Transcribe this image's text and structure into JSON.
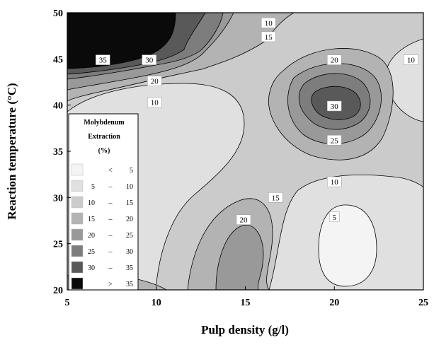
{
  "chart_data": {
    "type": "heatmap",
    "subtype": "filled-contour",
    "xlabel": "Pulp density (g/l)",
    "ylabel": "Reaction temperature (°C)",
    "xlim": [
      5,
      25
    ],
    "ylim": [
      20,
      50
    ],
    "xticks": [
      "5",
      "10",
      "15",
      "20",
      "25"
    ],
    "yticks": [
      "20",
      "25",
      "30",
      "35",
      "40",
      "45",
      "50"
    ],
    "grid": false,
    "legend": {
      "placement": "bottom-left",
      "title_lines": [
        "Molybdenum",
        "Extraction",
        "(%)"
      ],
      "entries": [
        {
          "lo": "",
          "sep": "<",
          "hi": "5",
          "color": "#f4f4f4"
        },
        {
          "lo": "5",
          "sep": "–",
          "hi": "10",
          "color": "#e0e0e0"
        },
        {
          "lo": "10",
          "sep": "–",
          "hi": "15",
          "color": "#cbcbcb"
        },
        {
          "lo": "15",
          "sep": "–",
          "hi": "20",
          "color": "#b3b3b3"
        },
        {
          "lo": "20",
          "sep": "–",
          "hi": "25",
          "color": "#999999"
        },
        {
          "lo": "25",
          "sep": "–",
          "hi": "30",
          "color": "#7d7d7d"
        },
        {
          "lo": "30",
          "sep": "–",
          "hi": "35",
          "color": "#595959"
        },
        {
          "lo": "",
          "sep": ">",
          "hi": "35",
          "color": "#0a0a0a"
        }
      ]
    },
    "contour_labels": [
      {
        "text": "10",
        "x": 16.3,
        "y": 48.9
      },
      {
        "text": "15",
        "x": 16.3,
        "y": 47.4
      },
      {
        "text": "35",
        "x": 7.0,
        "y": 44.9
      },
      {
        "text": "30",
        "x": 9.6,
        "y": 44.9
      },
      {
        "text": "20",
        "x": 9.9,
        "y": 42.6
      },
      {
        "text": "10",
        "x": 9.9,
        "y": 40.3
      },
      {
        "text": "20",
        "x": 20.0,
        "y": 44.9
      },
      {
        "text": "10",
        "x": 24.3,
        "y": 44.9
      },
      {
        "text": "30",
        "x": 20.0,
        "y": 39.9
      },
      {
        "text": "25",
        "x": 20.0,
        "y": 36.2
      },
      {
        "text": "10",
        "x": 20.0,
        "y": 31.7
      },
      {
        "text": "15",
        "x": 16.7,
        "y": 30.0
      },
      {
        "text": "20",
        "x": 14.9,
        "y": 27.6
      },
      {
        "text": "5",
        "x": 20.0,
        "y": 27.9
      }
    ],
    "zones": [
      {
        "name": "background",
        "level": "10–15"
      },
      {
        "name": "top-right lobe",
        "level": "5–10"
      },
      {
        "name": "middle-left lobe",
        "level": "5–10"
      },
      {
        "name": "bottom-right region",
        "level": "5–10"
      },
      {
        "name": "bottom-right minimum",
        "level": "< 5"
      },
      {
        "name": "top-left band",
        "level": "15–20"
      },
      {
        "name": "top-left band",
        "level": "20–25"
      },
      {
        "name": "top-left band",
        "level": "25–30"
      },
      {
        "name": "top-left band",
        "level": "30–35"
      },
      {
        "name": "top-left maximum",
        "level": "> 35"
      },
      {
        "name": "center-right mound",
        "level": "15–20"
      },
      {
        "name": "center-right mound",
        "level": "20–25"
      },
      {
        "name": "center-right mound",
        "level": "25–30"
      },
      {
        "name": "center-right peak",
        "level": "30–35"
      },
      {
        "name": "bottom-middle mound",
        "level": "15–20"
      },
      {
        "name": "bottom-middle mound",
        "level": "20–25"
      },
      {
        "name": "bottom-left patch",
        "level": "15–20"
      }
    ]
  }
}
